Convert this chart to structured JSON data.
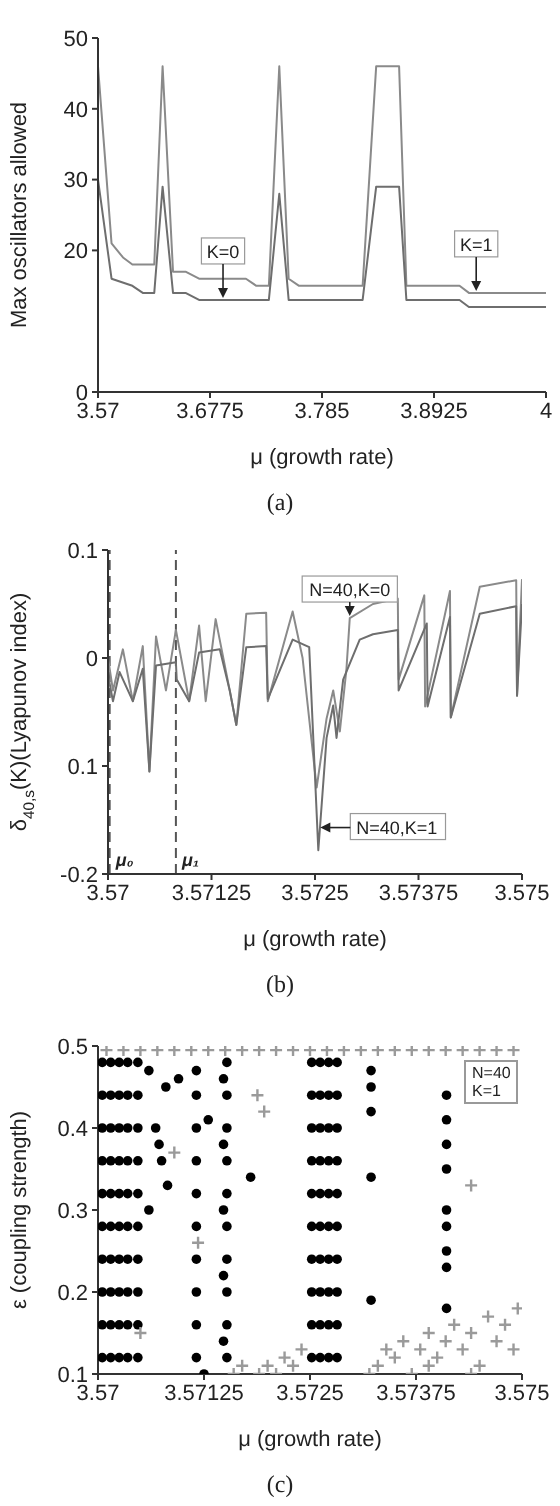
{
  "chart_data": [
    {
      "type": "line",
      "xlabel": "μ (growth rate)",
      "ylabel": "Max oscillators allowed",
      "xlim": [
        3.57,
        4
      ],
      "xticks": [
        3.57,
        3.6775,
        3.785,
        3.8925,
        4
      ],
      "ylim": [
        0,
        50
      ],
      "yticks": [
        0,
        20,
        30,
        40,
        50
      ],
      "marker": "none",
      "annotations": [
        {
          "text": "K=0",
          "x": 3.69,
          "y": 13
        },
        {
          "text": "K=1",
          "x": 3.933,
          "y": 14
        },
        "(a)"
      ],
      "series": [
        {
          "color": "#8a8a8a",
          "x": [
            3.57,
            3.583,
            3.594,
            3.603,
            3.624,
            3.632,
            3.642,
            3.654,
            3.667,
            3.712,
            3.722,
            3.734,
            3.744,
            3.753,
            3.763,
            3.824,
            3.837,
            3.859,
            3.866,
            3.917,
            3.926,
            4
          ],
          "values": [
            46,
            21,
            19,
            18,
            18,
            46,
            17,
            17,
            16,
            16,
            15,
            15,
            46,
            16,
            15,
            15,
            46,
            46,
            15,
            15,
            14,
            14
          ]
        },
        {
          "color": "#6e6e6e",
          "x": [
            3.57,
            3.583,
            3.603,
            3.613,
            3.624,
            3.632,
            3.642,
            3.654,
            3.667,
            3.734,
            3.744,
            3.753,
            3.824,
            3.837,
            3.859,
            3.866,
            3.917,
            3.926,
            4
          ],
          "values": [
            30,
            16,
            15,
            14,
            14,
            29,
            14,
            14,
            13,
            13,
            28,
            13,
            13,
            29,
            29,
            13,
            13,
            12,
            12
          ]
        }
      ]
    },
    {
      "type": "line",
      "xlabel": "μ (growth rate)",
      "ylabel": "δ$_{40,s}$(K)(Lyapunov index)",
      "xlim": [
        3.57,
        3.575
      ],
      "xticks": [
        3.57,
        3.57125,
        3.5725,
        3.57375,
        3.575
      ],
      "ylim": [
        -0.2,
        0.1
      ],
      "yticks": [
        -0.2,
        {
          "value": -0.1,
          "label": "0.1"
        },
        0,
        0.1
      ],
      "marker": "none",
      "annotations": [
        {
          "text": "N=40,K=0",
          "x": 3.57292,
          "y": 0.037
        },
        {
          "text": "N=40,K=1",
          "x": 3.57254,
          "y": -0.157
        },
        "(b)"
      ],
      "ref_lines": [
        {
          "axis": "x",
          "value": 3.57002,
          "label": "μ₀",
          "line_style": "dashed",
          "color": "#555555"
        },
        {
          "axis": "x",
          "value": 3.57082,
          "label": "μ₁",
          "line_style": "dashed",
          "color": "#555555"
        }
      ],
      "series": [
        {
          "color": "#8a8a8a",
          "x": [
            3.57,
            3.57006,
            3.57018,
            3.5703,
            3.57042,
            3.5705,
            3.57058,
            3.5707,
            3.57082,
            3.57098,
            3.5711,
            3.57118,
            3.5713,
            3.57147,
            3.57155,
            3.57167,
            3.57191,
            3.57193,
            3.57223,
            3.57235,
            3.57252,
            3.57264,
            3.57272,
            3.5728,
            3.57288,
            3.57292,
            3.5732,
            3.5735,
            3.57351,
            3.57382,
            3.57383,
            3.57413,
            3.57414,
            3.57449,
            3.57493,
            3.57494,
            3.575
          ],
          "values": [
            0,
            -0.03,
            0.008,
            -0.04,
            0.011,
            -0.105,
            0.02,
            -0.03,
            0.026,
            -0.04,
            0.03,
            -0.04,
            0.036,
            -0.03,
            -0.062,
            0.041,
            0.042,
            -0.04,
            0.043,
            0,
            -0.12,
            -0.056,
            -0.03,
            -0.068,
            -0.01,
            0.037,
            0.05,
            0.055,
            -0.02,
            0.058,
            -0.045,
            0.062,
            -0.055,
            0.066,
            0.072,
            -0.035,
            0.073
          ]
        },
        {
          "color": "#6e6e6e",
          "x": [
            3.57,
            3.57006,
            3.57014,
            3.5703,
            3.57042,
            3.5705,
            3.57058,
            3.57082,
            3.57083,
            3.57098,
            3.5711,
            3.57135,
            3.57147,
            3.57155,
            3.57167,
            3.57191,
            3.57193,
            3.57223,
            3.57243,
            3.57254,
            3.57264,
            3.57272,
            3.57276,
            3.57284,
            3.57304,
            3.5732,
            3.5735,
            3.57351,
            3.57385,
            3.57386,
            3.57413,
            3.57414,
            3.57449,
            3.57493,
            3.57494,
            3.575
          ],
          "values": [
            -0.016,
            -0.04,
            -0.013,
            -0.04,
            -0.01,
            -0.105,
            -0.007,
            -0.004,
            -0.02,
            -0.04,
            0.005,
            0.008,
            -0.03,
            -0.062,
            0.01,
            0.011,
            -0.038,
            0.017,
            0.01,
            -0.178,
            -0.074,
            -0.044,
            -0.074,
            -0.02,
            0.017,
            0.022,
            0.026,
            -0.03,
            0.032,
            -0.045,
            0.038,
            -0.055,
            0.041,
            0.048,
            -0.035,
            0.05
          ]
        }
      ]
    },
    {
      "type": "scatter",
      "xlabel": "μ (growth rate)",
      "ylabel": "ε (coupling strength)",
      "xlim": [
        3.57,
        3.575
      ],
      "xticks": [
        3.57,
        3.57125,
        3.5725,
        3.57375,
        3.575
      ],
      "ylim": [
        0.1,
        0.5
      ],
      "yticks": [
        0.1,
        0.2,
        0.3,
        0.4,
        0.5
      ],
      "annotations": [
        "N=40\nK=1",
        "(c)"
      ],
      "series": [
        {
          "color": "#000000",
          "marker": "circle",
          "x": [
            3.57005,
            3.57005,
            3.57005,
            3.57005,
            3.57005,
            3.57005,
            3.57005,
            3.57005,
            3.57005,
            3.57005,
            3.57015,
            3.57015,
            3.57015,
            3.57015,
            3.57015,
            3.57015,
            3.57015,
            3.57015,
            3.57015,
            3.57015,
            3.57025,
            3.57025,
            3.57025,
            3.57025,
            3.57025,
            3.57025,
            3.57025,
            3.57025,
            3.57025,
            3.57025,
            3.57035,
            3.57035,
            3.57035,
            3.57035,
            3.57035,
            3.57035,
            3.57035,
            3.57035,
            3.57035,
            3.57035,
            3.57047,
            3.57047,
            3.57047,
            3.57047,
            3.57047,
            3.57047,
            3.57047,
            3.57047,
            3.57047,
            3.57047,
            3.57152,
            3.57152,
            3.57152,
            3.57152,
            3.57152,
            3.57152,
            3.57152,
            3.57152,
            3.57152,
            3.57152,
            3.57148,
            3.57148,
            3.57148,
            3.57148,
            3.57148,
            3.57252,
            3.57252,
            3.57252,
            3.57252,
            3.57252,
            3.57252,
            3.57252,
            3.57252,
            3.57252,
            3.57252,
            3.57262,
            3.57262,
            3.57262,
            3.57262,
            3.57262,
            3.57262,
            3.57262,
            3.57262,
            3.57262,
            3.57262,
            3.57272,
            3.57272,
            3.57272,
            3.57272,
            3.57272,
            3.57272,
            3.57272,
            3.57272,
            3.57272,
            3.57272,
            3.57282,
            3.57282,
            3.57282,
            3.57282,
            3.57282,
            3.57282,
            3.57282,
            3.57282,
            3.57282,
            3.57282,
            3.57116,
            3.57116,
            3.57116,
            3.57116,
            3.57116,
            3.57116,
            3.57116,
            3.57116,
            3.57116,
            3.57116,
            3.57322,
            3.57322,
            3.57322,
            3.57322,
            3.57322,
            3.57411,
            3.57411,
            3.57411,
            3.57411,
            3.57411,
            3.57411,
            3.57411,
            3.57411,
            3.57411,
            3.5706,
            3.57068,
            3.57075,
            3.57082,
            3.5708,
            3.57095,
            3.5713,
            3.5718,
            3.57125,
            3.5706,
            3.57072
          ],
          "values": [
            0.12,
            0.16,
            0.2,
            0.24,
            0.28,
            0.32,
            0.36,
            0.4,
            0.44,
            0.48,
            0.12,
            0.16,
            0.2,
            0.24,
            0.28,
            0.32,
            0.36,
            0.4,
            0.44,
            0.48,
            0.12,
            0.16,
            0.2,
            0.24,
            0.28,
            0.32,
            0.36,
            0.4,
            0.44,
            0.48,
            0.12,
            0.16,
            0.2,
            0.24,
            0.28,
            0.32,
            0.36,
            0.4,
            0.44,
            0.48,
            0.12,
            0.16,
            0.2,
            0.24,
            0.28,
            0.32,
            0.36,
            0.4,
            0.44,
            0.48,
            0.12,
            0.16,
            0.2,
            0.24,
            0.28,
            0.32,
            0.36,
            0.4,
            0.44,
            0.48,
            0.14,
            0.22,
            0.3,
            0.38,
            0.46,
            0.12,
            0.16,
            0.2,
            0.24,
            0.28,
            0.32,
            0.36,
            0.4,
            0.44,
            0.48,
            0.12,
            0.16,
            0.2,
            0.24,
            0.28,
            0.32,
            0.36,
            0.4,
            0.44,
            0.48,
            0.12,
            0.16,
            0.2,
            0.24,
            0.28,
            0.32,
            0.36,
            0.4,
            0.44,
            0.48,
            0.12,
            0.16,
            0.2,
            0.24,
            0.28,
            0.32,
            0.36,
            0.4,
            0.44,
            0.48,
            0.47,
            0.44,
            0.4,
            0.36,
            0.32,
            0.28,
            0.24,
            0.2,
            0.16,
            0.12,
            0.47,
            0.45,
            0.42,
            0.34,
            0.19,
            0.44,
            0.41,
            0.38,
            0.35,
            0.3,
            0.28,
            0.25,
            0.23,
            0.18,
            0.47,
            0.4,
            0.36,
            0.33,
            0.45,
            0.46,
            0.41,
            0.34,
            0.1,
            0.3,
            0.38
          ]
        },
        {
          "color": "#9a9a9a",
          "marker": "cross",
          "x": [
            3.5701,
            3.5703,
            3.5705,
            3.5707,
            3.5709,
            3.5711,
            3.5713,
            3.5715,
            3.5717,
            3.5719,
            3.5721,
            3.5723,
            3.5725,
            3.5727,
            3.5729,
            3.5731,
            3.5733,
            3.5735,
            3.5737,
            3.5739,
            3.5741,
            3.5743,
            3.5745,
            3.5747,
            3.5749,
            3.5719,
            3.572,
            3.5721,
            3.5717,
            3.5722,
            3.5723,
            3.5724,
            3.5732,
            3.5733,
            3.5734,
            3.5735,
            3.5736,
            3.5737,
            3.5738,
            3.5739,
            3.574,
            3.5741,
            3.5742,
            3.5743,
            3.5744,
            3.5745,
            3.5746,
            3.5747,
            3.5748,
            3.5749,
            3.57495,
            3.5739,
            3.5744,
            3.57188,
            3.57196,
            3.5744,
            3.5709,
            3.57118,
            3.5705,
            3.5716
          ],
          "values": [
            0.495,
            0.495,
            0.495,
            0.495,
            0.495,
            0.495,
            0.495,
            0.495,
            0.495,
            0.495,
            0.495,
            0.495,
            0.495,
            0.495,
            0.495,
            0.495,
            0.495,
            0.495,
            0.495,
            0.495,
            0.495,
            0.495,
            0.495,
            0.495,
            0.495,
            0.1,
            0.11,
            0.1,
            0.11,
            0.12,
            0.11,
            0.13,
            0.1,
            0.11,
            0.13,
            0.12,
            0.14,
            0.1,
            0.13,
            0.15,
            0.12,
            0.14,
            0.16,
            0.13,
            0.15,
            0.11,
            0.17,
            0.14,
            0.16,
            0.13,
            0.18,
            0.11,
            0.1,
            0.44,
            0.42,
            0.33,
            0.37,
            0.26,
            0.15,
            0.1
          ]
        }
      ]
    }
  ]
}
